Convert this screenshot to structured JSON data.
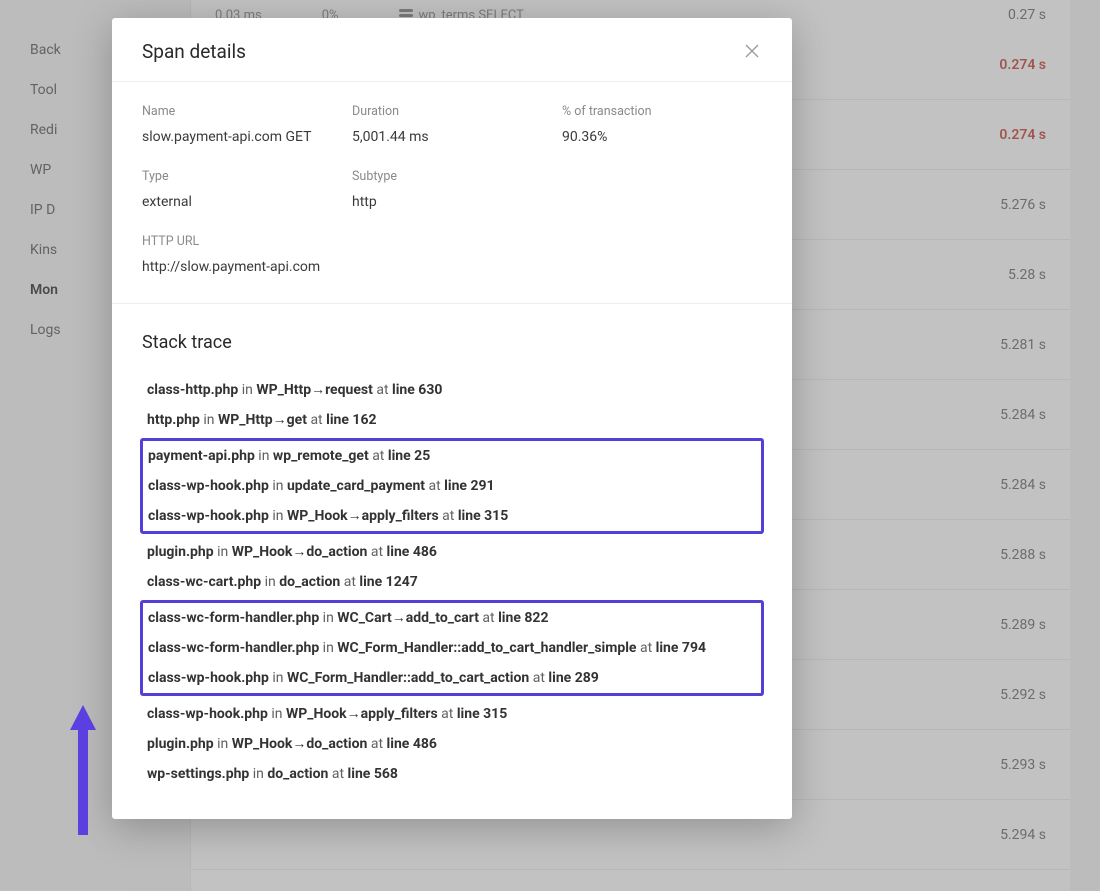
{
  "colors": {
    "highlight_border": "#5340d9",
    "arrow_fill": "#5b3fe0",
    "time_red": "#c0392b",
    "text_main": "#3a3a3a",
    "text_muted": "#8a8a8a",
    "modal_bg": "#ffffff",
    "overlay": "rgba(120,120,120,0.45)"
  },
  "background": {
    "top_row": {
      "ms": "0.03 ms",
      "pct": "0%",
      "query": "wp_terms SELECT",
      "time": "0.27 s"
    },
    "sidebar": [
      {
        "label": "Back",
        "bold": false
      },
      {
        "label": "Tool",
        "bold": false
      },
      {
        "label": "Redi",
        "bold": false
      },
      {
        "label": "WP",
        "bold": false
      },
      {
        "label": "IP D",
        "bold": false
      },
      {
        "label": "Kins",
        "bold": false
      },
      {
        "label": "Mon",
        "bold": true
      },
      {
        "label": "Logs",
        "bold": false
      }
    ],
    "rows": [
      {
        "time": "0.274 s",
        "red": true
      },
      {
        "time": "0.274 s",
        "red": true
      },
      {
        "time": "5.276 s",
        "red": false
      },
      {
        "time": "5.28 s",
        "red": false
      },
      {
        "time": "5.281 s",
        "red": false
      },
      {
        "time": "5.284 s",
        "red": false
      },
      {
        "time": "5.284 s",
        "red": false
      },
      {
        "time": "5.288 s",
        "red": false
      },
      {
        "time": "5.289 s",
        "red": false
      },
      {
        "time": "5.292 s",
        "red": false
      },
      {
        "time": "5.293 s",
        "red": false
      },
      {
        "time": "5.294 s",
        "red": false
      }
    ]
  },
  "modal": {
    "title": "Span details",
    "fields": {
      "name_label": "Name",
      "name_value": "slow.payment-api.com GET",
      "duration_label": "Duration",
      "duration_value": "5,001.44 ms",
      "pct_label": "% of transaction",
      "pct_value": "90.36%",
      "type_label": "Type",
      "type_value": "external",
      "subtype_label": "Subtype",
      "subtype_value": "http",
      "url_label": "HTTP URL",
      "url_value": "http://slow.payment-api.com"
    },
    "stack_title": "Stack trace",
    "stack": [
      {
        "group": 0,
        "file": "class-http.php",
        "fn": "WP_Http→request",
        "line": "630"
      },
      {
        "group": 0,
        "file": "http.php",
        "fn": "WP_Http→get",
        "line": "162"
      },
      {
        "group": 1,
        "file": "payment-api.php",
        "fn": "wp_remote_get",
        "line": "25"
      },
      {
        "group": 1,
        "file": "class-wp-hook.php",
        "fn": "update_card_payment",
        "line": "291"
      },
      {
        "group": 1,
        "file": "class-wp-hook.php",
        "fn": "WP_Hook→apply_filters",
        "line": "315"
      },
      {
        "group": 0,
        "file": "plugin.php",
        "fn": "WP_Hook→do_action",
        "line": "486"
      },
      {
        "group": 0,
        "file": "class-wc-cart.php",
        "fn": "do_action",
        "line": "1247"
      },
      {
        "group": 2,
        "file": "class-wc-form-handler.php",
        "fn": "WC_Cart→add_to_cart",
        "line": "822"
      },
      {
        "group": 2,
        "file": "class-wc-form-handler.php",
        "fn": "WC_Form_Handler::add_to_cart_handler_simple",
        "line": "794"
      },
      {
        "group": 2,
        "file": "class-wp-hook.php",
        "fn": "WC_Form_Handler::add_to_cart_action",
        "line": "289"
      },
      {
        "group": 0,
        "file": "class-wp-hook.php",
        "fn": "WP_Hook→apply_filters",
        "line": "315"
      },
      {
        "group": 0,
        "file": "plugin.php",
        "fn": "WP_Hook→do_action",
        "line": "486"
      },
      {
        "group": 0,
        "file": "wp-settings.php",
        "fn": "do_action",
        "line": "568"
      }
    ]
  }
}
